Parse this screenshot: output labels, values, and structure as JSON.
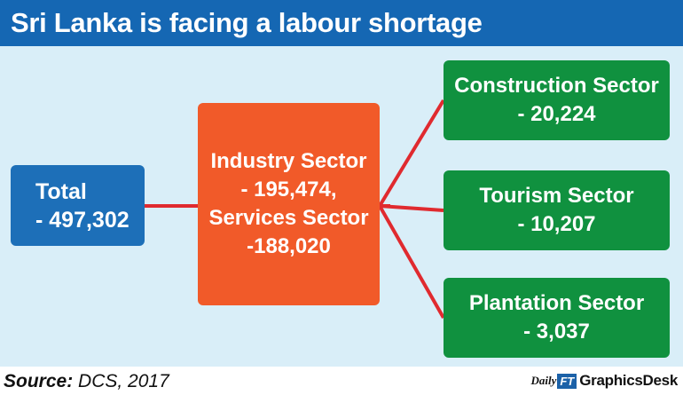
{
  "title": "Sri Lanka is facing a labour shortage",
  "total": {
    "line1": "Total",
    "line2": "- 497,302"
  },
  "middle": {
    "line1": "Industry Sector",
    "line2": "- 195,474,",
    "line3": "Services Sector",
    "line4": "-188,020"
  },
  "sectors": [
    {
      "name": "Construction Sector",
      "value": "- 20,224"
    },
    {
      "name": "Tourism Sector",
      "value": "- 10,207"
    },
    {
      "name": "Plantation Sector",
      "value": "- 3,037"
    }
  ],
  "source": {
    "label": "Source:",
    "text": " DCS, 2017"
  },
  "logo": {
    "daily": "Daily",
    "ft": "FT",
    "desk": "GraphicsDesk"
  },
  "colors": {
    "header": "#1567b3",
    "background": "#d9eef8",
    "total_box": "#1d6fb8",
    "middle_box": "#f15a29",
    "sector_box": "#10913f",
    "connector": "#e02a2f"
  }
}
